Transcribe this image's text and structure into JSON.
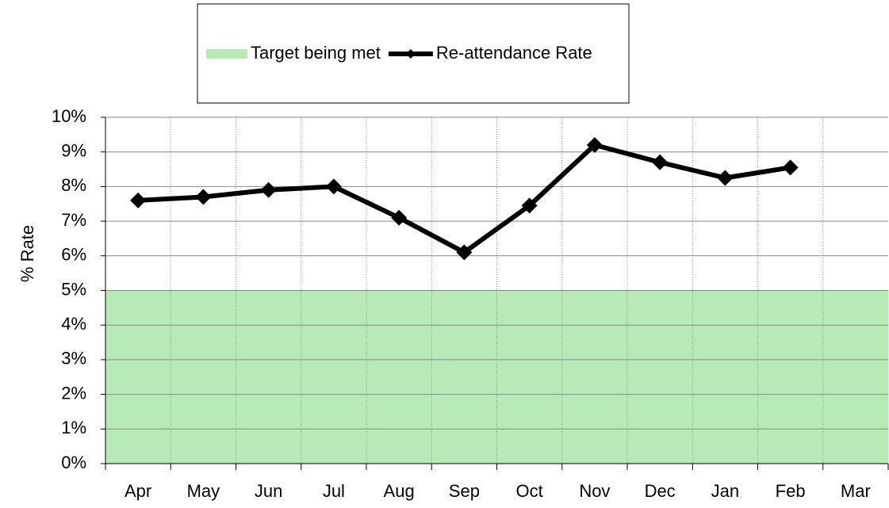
{
  "chart_data": {
    "type": "line",
    "y_label": "% Rate",
    "categories": [
      "Apr",
      "May",
      "Jun",
      "Jul",
      "Aug",
      "Sep",
      "Oct",
      "Nov",
      "Dec",
      "Jan",
      "Feb",
      "Mar"
    ],
    "series": [
      {
        "name": "Target being met",
        "type": "area",
        "color": "#b8eab8",
        "values": [
          5,
          5,
          5,
          5,
          5,
          5,
          5,
          5,
          5,
          5,
          5,
          5
        ]
      },
      {
        "name": "Re-attendance Rate",
        "type": "line",
        "color": "#000000",
        "values": [
          7.6,
          7.7,
          7.9,
          8.0,
          7.1,
          6.1,
          7.45,
          9.2,
          8.7,
          8.25,
          8.55,
          null
        ]
      }
    ],
    "ylim": [
      0,
      10
    ],
    "yticks": [
      {
        "value": 0,
        "label": "0%"
      },
      {
        "value": 1,
        "label": "1%"
      },
      {
        "value": 2,
        "label": "2%"
      },
      {
        "value": 3,
        "label": "3%"
      },
      {
        "value": 4,
        "label": "4%"
      },
      {
        "value": 5,
        "label": "5%"
      },
      {
        "value": 6,
        "label": "6%"
      },
      {
        "value": 7,
        "label": "7%"
      },
      {
        "value": 8,
        "label": "8%"
      },
      {
        "value": 9,
        "label": "9%"
      },
      {
        "value": 10,
        "label": "10%"
      }
    ],
    "grid": true,
    "legend": "top"
  }
}
